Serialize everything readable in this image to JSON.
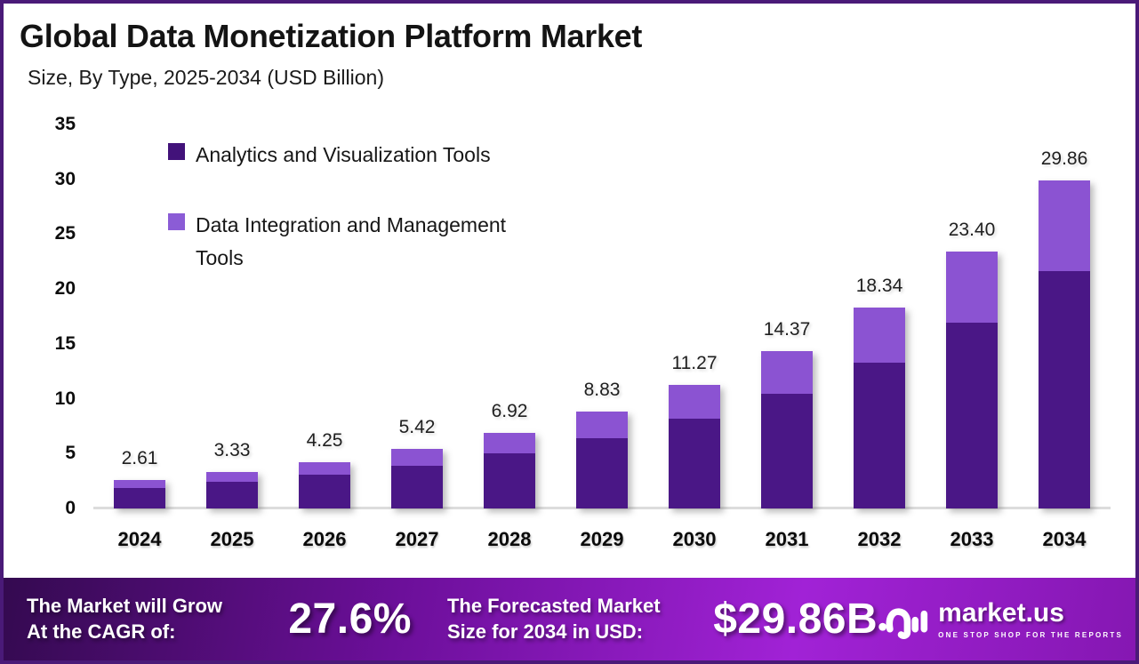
{
  "header": {
    "title": "Global Data Monetization Platform Market",
    "subtitle": "Size, By Type, 2025-2034 (USD Billion)"
  },
  "chart_data": {
    "type": "bar",
    "stacked": true,
    "title": "Global Data Monetization Platform Market",
    "subtitle": "Size, By Type, 2025-2034 (USD Billion)",
    "unit": "USD Billion",
    "categories": [
      "2024",
      "2025",
      "2026",
      "2027",
      "2028",
      "2029",
      "2030",
      "2031",
      "2032",
      "2033",
      "2034"
    ],
    "series": [
      {
        "name": "Analytics and Visualization Tools",
        "color": "#4a1786",
        "values": [
          1.89,
          2.41,
          3.08,
          3.93,
          5.02,
          6.4,
          8.17,
          10.42,
          13.3,
          16.96,
          21.65
        ]
      },
      {
        "name": "Data Integration and Management Tools",
        "color": "#8b53d2",
        "values": [
          0.72,
          0.92,
          1.17,
          1.49,
          1.9,
          2.43,
          3.1,
          3.95,
          5.04,
          6.44,
          8.21
        ]
      }
    ],
    "totals": [
      2.61,
      3.33,
      4.25,
      5.42,
      6.92,
      8.83,
      11.27,
      14.37,
      18.34,
      23.4,
      29.86
    ],
    "total_labels": [
      "2.61",
      "3.33",
      "4.25",
      "5.42",
      "6.92",
      "8.83",
      "11.27",
      "14.37",
      "18.34",
      "23.40",
      "29.86"
    ],
    "ylim": [
      0,
      35
    ],
    "yticks": [
      0,
      5,
      10,
      15,
      20,
      25,
      30,
      35
    ],
    "grid": false,
    "legend_position": "top-left-inside"
  },
  "footer": {
    "cagr_label_line1": "The Market will Grow",
    "cagr_label_line2": "At the CAGR of:",
    "cagr_value": "27.6%",
    "forecast_label_line1": "The Forecasted Market",
    "forecast_label_line2": "Size for 2034 in USD:",
    "forecast_value": "$29.86B",
    "brand": {
      "name": "market.us",
      "tagline": "ONE STOP SHOP FOR THE REPORTS"
    }
  },
  "colors": {
    "canvas_border": "#4a1a78",
    "bar_dark": "#4a1786",
    "bar_light": "#8b53d2",
    "legend_dark": "#42127a",
    "legend_light": "#8b5cd6",
    "axis_line": "#dcdcdc",
    "footer_text": "#ffffff",
    "footer_gradient": [
      "#340a50",
      "#6c0f9a",
      "#a122d6",
      "#8517b2"
    ]
  }
}
